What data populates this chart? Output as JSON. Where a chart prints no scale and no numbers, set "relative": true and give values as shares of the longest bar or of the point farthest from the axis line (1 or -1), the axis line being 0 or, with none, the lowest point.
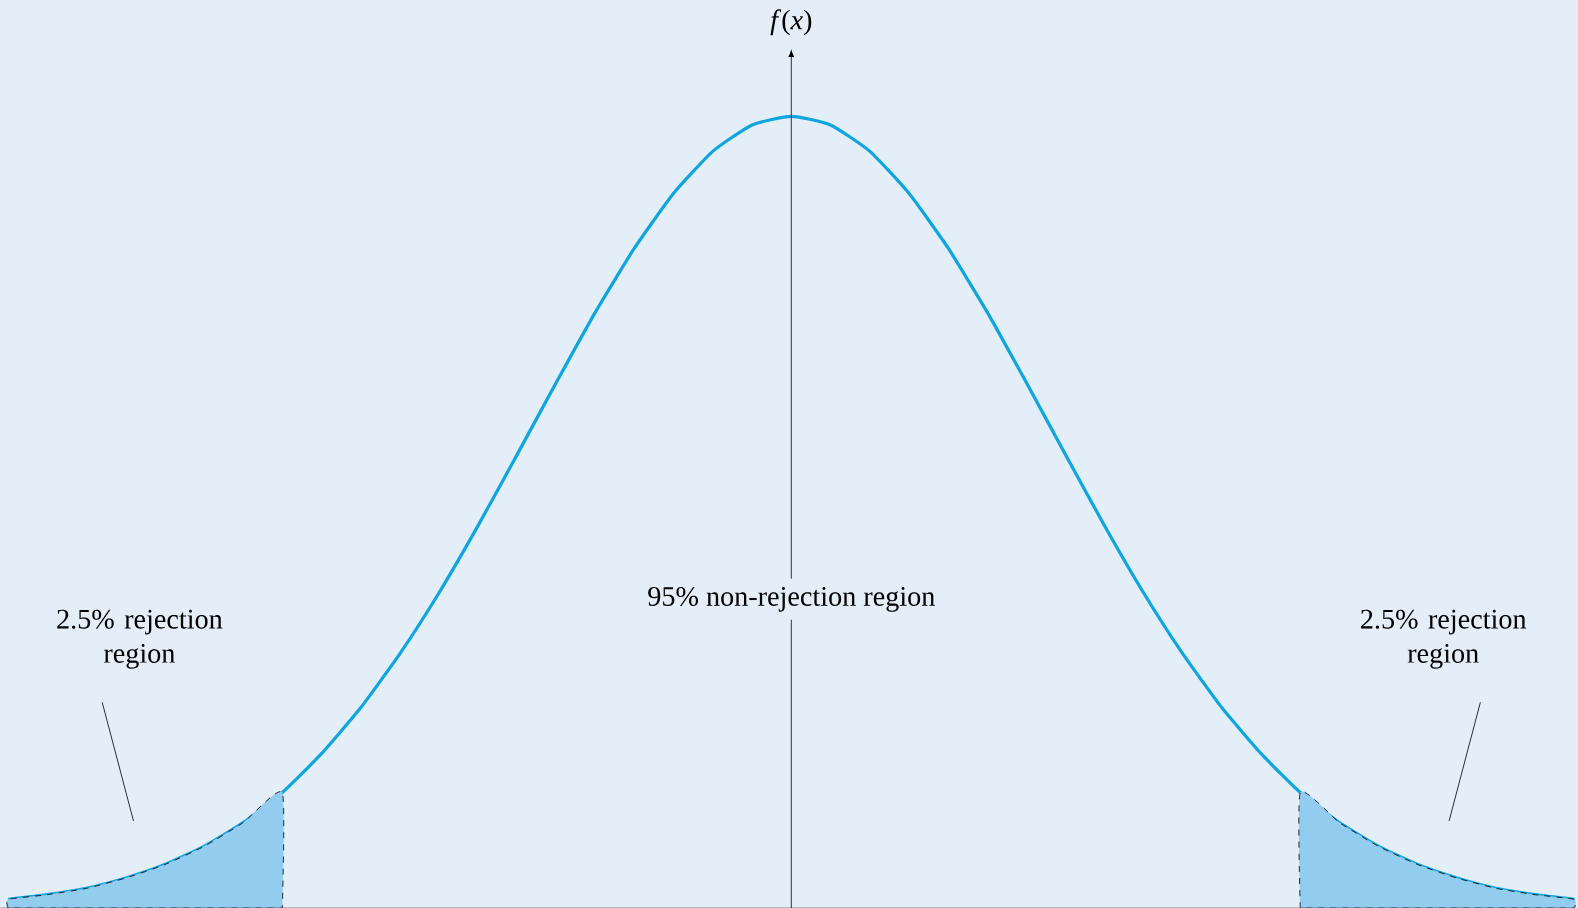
{
  "chart_data": {
    "type": "line",
    "relative": true,
    "marker": "none",
    "categories": [
      null,
      null,
      null,
      null,
      null,
      null,
      null,
      null,
      null,
      null,
      null,
      null,
      null,
      null,
      null,
      null,
      null,
      null,
      null,
      null,
      null,
      null,
      null,
      null,
      null,
      null,
      null,
      null,
      null,
      null,
      null,
      null,
      null,
      null,
      null,
      null,
      null,
      null,
      null,
      null,
      null
    ],
    "series": [
      {
        "color": "#0ea5e0",
        "values": [
          0.011,
          0.017,
          0.025,
          0.038,
          0.055,
          0.078,
          0.108,
          0.146,
          0.195,
          0.253,
          0.321,
          0.398,
          0.483,
          0.573,
          0.664,
          0.753,
          0.834,
          0.903,
          0.956,
          0.989,
          1,
          0.989,
          0.956,
          0.903,
          0.834,
          0.753,
          0.664,
          0.573,
          0.483,
          0.398,
          0.321,
          0.253,
          0.195,
          0.146,
          0.108,
          0.078,
          0.055,
          0.038,
          0.025,
          0.017,
          0.011
        ]
      },
      {
        "type": "area",
        "color": "#92ccee",
        "values": [
          0.011,
          0.017,
          0.025,
          0.038,
          0.055,
          0.078,
          0.108,
          0.146,
          null,
          null,
          null,
          null,
          null,
          null,
          null,
          null,
          null,
          null,
          null,
          null,
          null,
          null,
          null,
          null,
          null,
          null,
          null,
          null,
          null,
          null,
          null,
          null,
          null,
          null,
          null,
          null,
          null,
          null,
          null,
          null,
          null
        ]
      },
      {
        "type": "area",
        "color": "#92ccee",
        "values": [
          null,
          null,
          null,
          null,
          null,
          null,
          null,
          null,
          null,
          null,
          null,
          null,
          null,
          null,
          null,
          null,
          null,
          null,
          null,
          null,
          null,
          null,
          null,
          null,
          null,
          null,
          null,
          null,
          null,
          null,
          null,
          null,
          null,
          0.146,
          0.108,
          0.078,
          0.055,
          0.038,
          0.025,
          0.017,
          0.011
        ]
      }
    ],
    "ylabel": "*f*(*x*)",
    "annotations": [
      "95% non-rejection region",
      "2.5% rejection region",
      "2.5% rejection region"
    ]
  }
}
